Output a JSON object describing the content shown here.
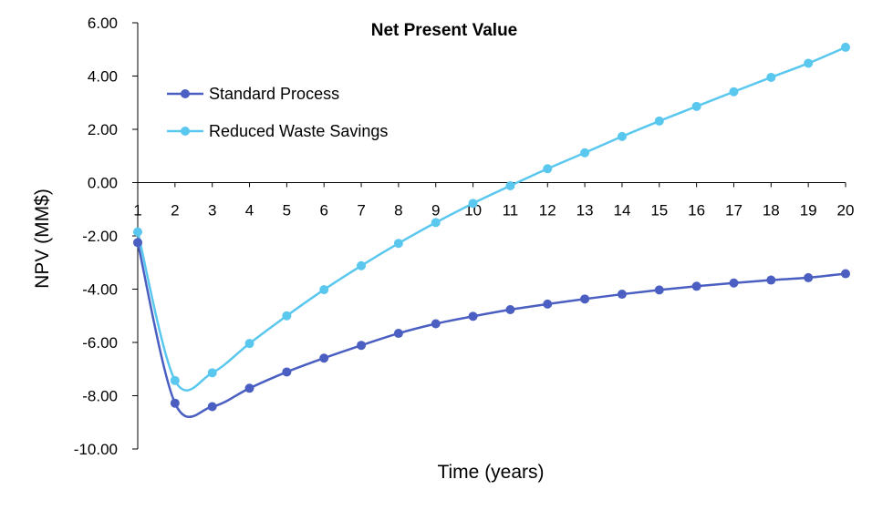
{
  "chart_data": {
    "type": "line",
    "title": "Net Present Value",
    "xlabel": "Time (years)",
    "ylabel": "NPV (MM$)",
    "ylim": [
      -10,
      6
    ],
    "yticks": [
      "6.00",
      "4.00",
      "2.00",
      "0.00",
      "-2.00",
      "-4.00",
      "-6.00",
      "-8.00",
      "-10.00"
    ],
    "ytick_values": [
      6,
      4,
      2,
      0,
      -2,
      -4,
      -6,
      -8,
      -10
    ],
    "categories": [
      "1",
      "2",
      "3",
      "4",
      "5",
      "6",
      "7",
      "8",
      "9",
      "10",
      "11",
      "12",
      "13",
      "14",
      "15",
      "16",
      "17",
      "18",
      "19",
      "20"
    ],
    "x": [
      1,
      2,
      3,
      4,
      5,
      6,
      7,
      8,
      9,
      10,
      11,
      12,
      13,
      14,
      15,
      16,
      17,
      18,
      19,
      20
    ],
    "grid": false,
    "smooth": true,
    "legend_position": "top-left",
    "series": [
      {
        "name": "Standard Process",
        "color": "#4a5fc1",
        "values": [
          -2.25,
          -8.28,
          -8.41,
          -7.72,
          -7.11,
          -6.59,
          -6.11,
          -5.66,
          -5.3,
          -5.02,
          -4.77,
          -4.56,
          -4.37,
          -4.19,
          -4.03,
          -3.89,
          -3.77,
          -3.66,
          -3.57,
          -3.42
        ]
      },
      {
        "name": "Reduced Waste Savings",
        "color": "#5ac8ee",
        "values": [
          -1.85,
          -7.43,
          -7.14,
          -6.04,
          -5.0,
          -4.02,
          -3.12,
          -2.28,
          -1.5,
          -0.78,
          -0.12,
          0.52,
          1.12,
          1.73,
          2.31,
          2.86,
          3.41,
          3.95,
          4.48,
          5.08
        ]
      }
    ]
  }
}
